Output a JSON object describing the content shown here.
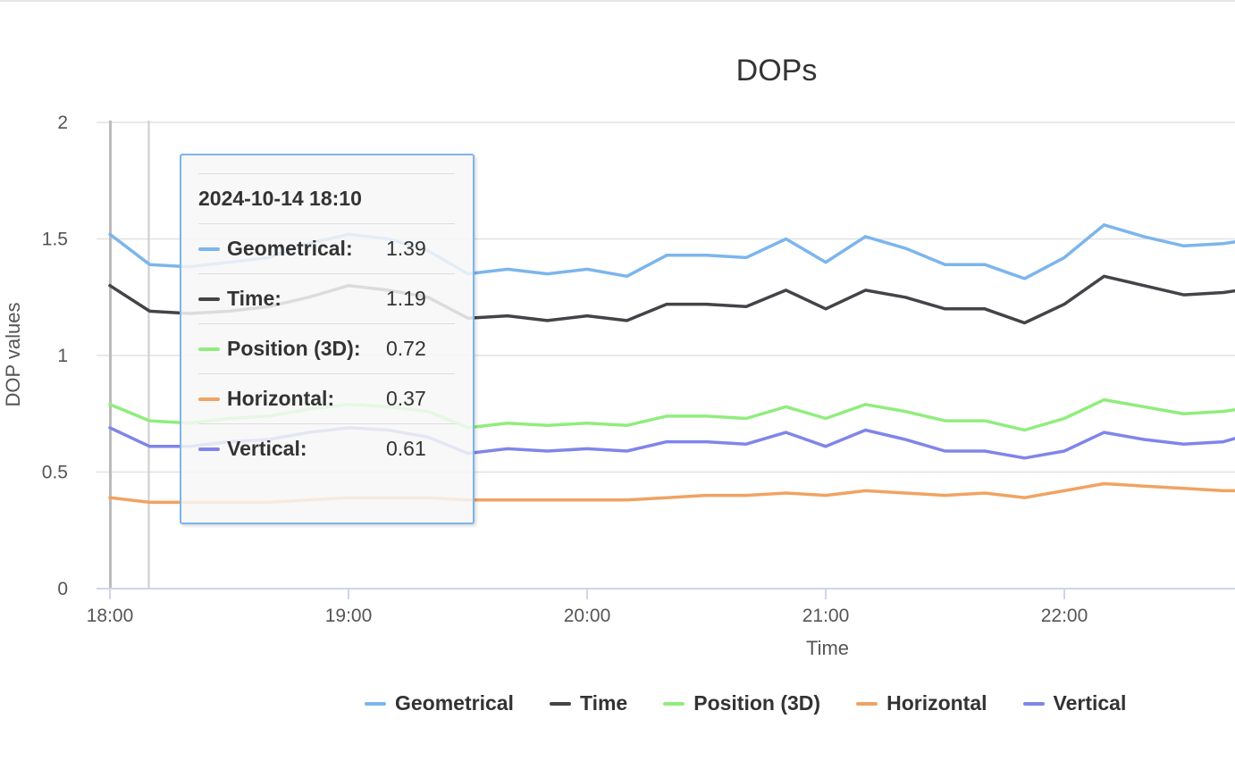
{
  "chart_data": {
    "type": "line",
    "title": "DOPs",
    "xlabel": "Time",
    "ylabel": "DOP values",
    "ylim": [
      0,
      2
    ],
    "y_ticks": [
      "0",
      "0.5",
      "1",
      "1.5",
      "2"
    ],
    "x_ticks": [
      "18:00",
      "19:00",
      "20:00",
      "21:00",
      "22:00"
    ],
    "grid": true,
    "legend_position": "bottom",
    "x": [
      "18:00",
      "18:10",
      "18:20",
      "18:30",
      "18:40",
      "18:50",
      "19:00",
      "19:10",
      "19:20",
      "19:30",
      "19:40",
      "19:50",
      "20:00",
      "20:10",
      "20:20",
      "20:30",
      "20:40",
      "20:50",
      "21:00",
      "21:10",
      "21:20",
      "21:30",
      "21:40",
      "21:50",
      "22:00",
      "22:10",
      "22:20",
      "22:30",
      "22:40",
      "22:44"
    ],
    "series": [
      {
        "name": "Geometrical",
        "color": "#7cb5ec",
        "values": [
          1.52,
          1.39,
          1.38,
          1.4,
          1.42,
          1.48,
          1.52,
          1.5,
          1.45,
          1.35,
          1.37,
          1.35,
          1.37,
          1.34,
          1.43,
          1.43,
          1.42,
          1.5,
          1.4,
          1.51,
          1.46,
          1.39,
          1.39,
          1.33,
          1.42,
          1.56,
          1.51,
          1.47,
          1.48,
          1.49
        ]
      },
      {
        "name": "Time",
        "color": "#434348",
        "values": [
          1.3,
          1.19,
          1.18,
          1.19,
          1.21,
          1.25,
          1.3,
          1.28,
          1.25,
          1.16,
          1.17,
          1.15,
          1.17,
          1.15,
          1.22,
          1.22,
          1.21,
          1.28,
          1.2,
          1.28,
          1.25,
          1.2,
          1.2,
          1.14,
          1.22,
          1.34,
          1.3,
          1.26,
          1.27,
          1.28
        ]
      },
      {
        "name": "Position (3D)",
        "color": "#90ed7d",
        "values": [
          0.79,
          0.72,
          0.71,
          0.73,
          0.74,
          0.77,
          0.79,
          0.78,
          0.76,
          0.69,
          0.71,
          0.7,
          0.71,
          0.7,
          0.74,
          0.74,
          0.73,
          0.78,
          0.73,
          0.79,
          0.76,
          0.72,
          0.72,
          0.68,
          0.73,
          0.81,
          0.78,
          0.75,
          0.76,
          0.77
        ]
      },
      {
        "name": "Horizontal",
        "color": "#f0a362",
        "values": [
          0.39,
          0.37,
          0.37,
          0.37,
          0.37,
          0.38,
          0.39,
          0.39,
          0.39,
          0.38,
          0.38,
          0.38,
          0.38,
          0.38,
          0.39,
          0.4,
          0.4,
          0.41,
          0.4,
          0.42,
          0.41,
          0.4,
          0.41,
          0.39,
          0.42,
          0.45,
          0.44,
          0.43,
          0.42,
          0.42
        ]
      },
      {
        "name": "Vertical",
        "color": "#8085e9",
        "values": [
          0.69,
          0.61,
          0.61,
          0.63,
          0.64,
          0.67,
          0.69,
          0.68,
          0.65,
          0.58,
          0.6,
          0.59,
          0.6,
          0.59,
          0.63,
          0.63,
          0.62,
          0.67,
          0.61,
          0.68,
          0.64,
          0.59,
          0.59,
          0.56,
          0.59,
          0.67,
          0.64,
          0.62,
          0.63,
          0.65
        ]
      }
    ]
  },
  "tooltip": {
    "header": "2024-10-14 18:10",
    "rows": [
      {
        "name": "Geometrical:",
        "value": "1.39",
        "color": "#7cb5ec"
      },
      {
        "name": "Time:",
        "value": "1.19",
        "color": "#434348"
      },
      {
        "name": "Position (3D):",
        "value": "0.72",
        "color": "#90ed7d"
      },
      {
        "name": "Horizontal:",
        "value": "0.37",
        "color": "#f0a362"
      },
      {
        "name": "Vertical:",
        "value": "0.61",
        "color": "#8085e9"
      }
    ]
  }
}
